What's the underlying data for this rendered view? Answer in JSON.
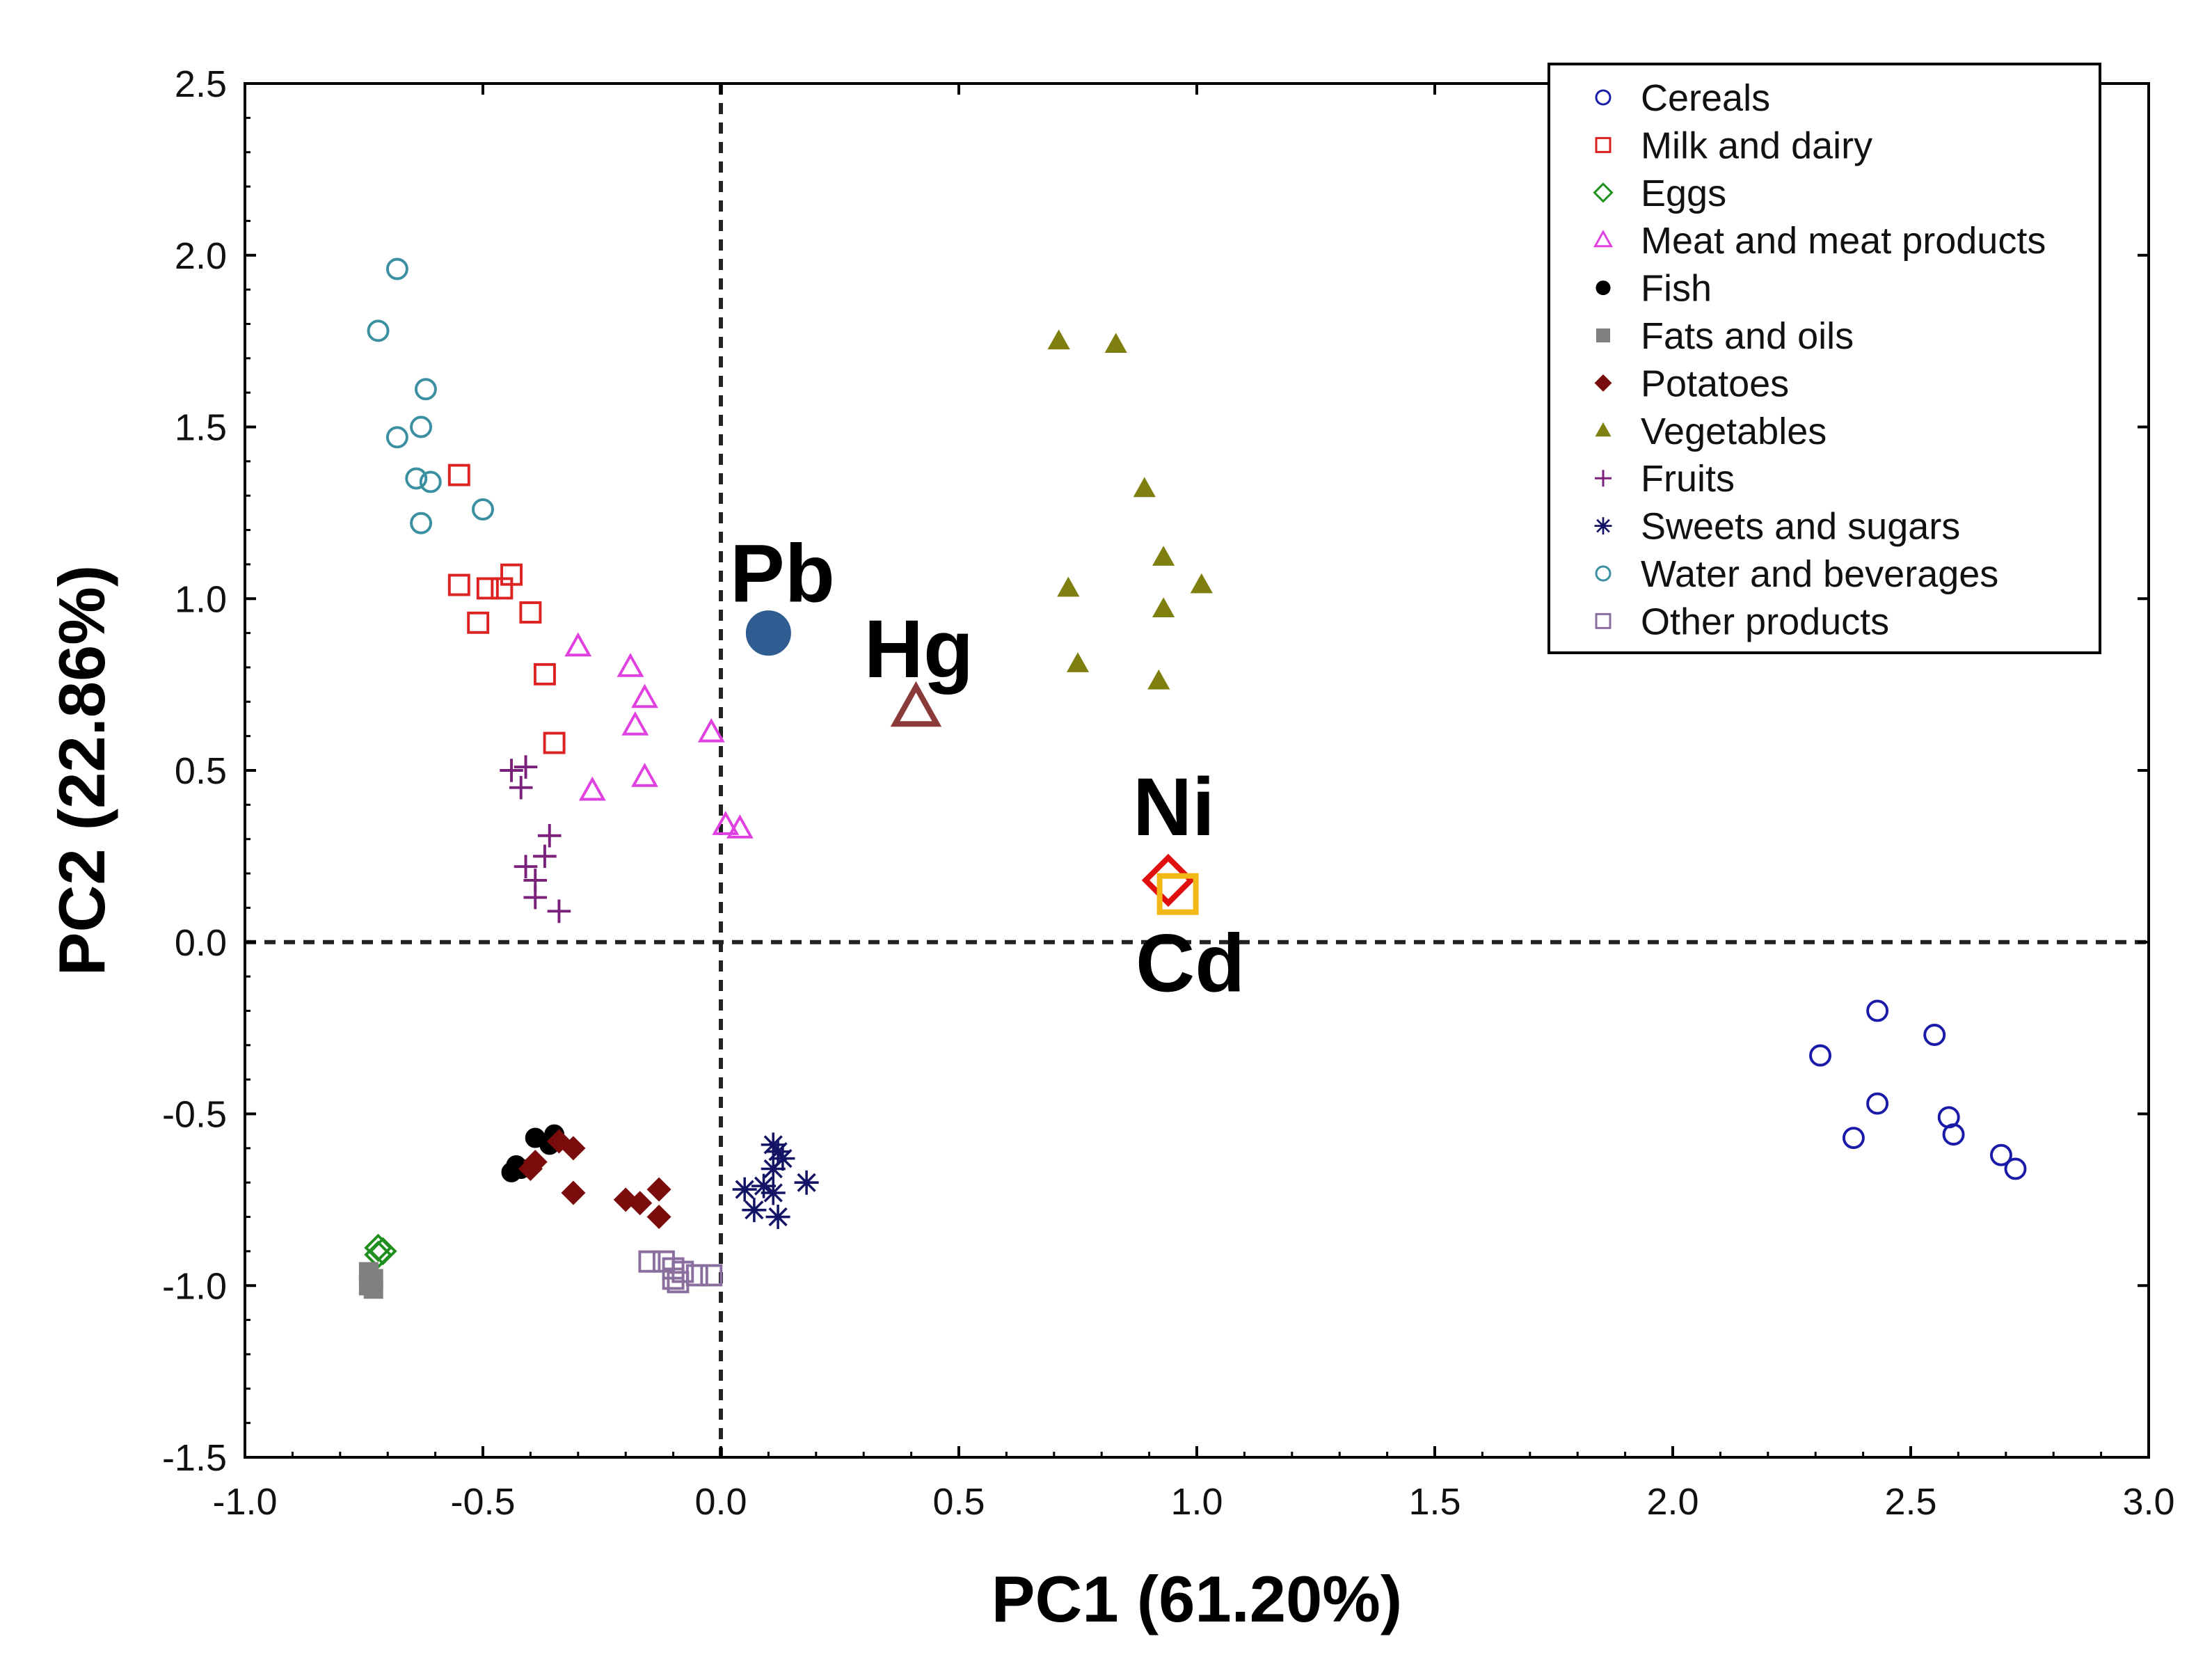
{
  "chart_data": {
    "type": "scatter",
    "xlabel": "PC1 (61.20%)",
    "ylabel": "PC2 (22.86%)",
    "xlim": [
      -1.0,
      3.0
    ],
    "ylim": [
      -1.5,
      2.5
    ],
    "xticks": [
      -1.0,
      -0.5,
      0.0,
      0.5,
      1.0,
      1.5,
      2.0,
      2.5,
      3.0
    ],
    "xtick_labels": [
      "-1.0",
      "-0.5",
      "0.0",
      "0.5",
      "1.0",
      "1.5",
      "2.0",
      "2.5",
      "3.0"
    ],
    "yticks": [
      -1.5,
      -1.0,
      -0.5,
      0.0,
      0.5,
      1.0,
      1.5,
      2.0,
      2.5
    ],
    "ytick_labels": [
      "-1.5",
      "-1.0",
      "-0.5",
      "0.0",
      "0.5",
      "1.0",
      "1.5",
      "2.0",
      "2.5"
    ],
    "reference_lines": {
      "x": 0.0,
      "y": 0.0,
      "style": "dashed"
    },
    "legend_position": "top-right",
    "series": [
      {
        "name": "Cereals",
        "marker": "circle-open",
        "color": "#1a1aa8",
        "points": [
          [
            2.43,
            -0.2
          ],
          [
            2.55,
            -0.27
          ],
          [
            2.31,
            -0.33
          ],
          [
            2.43,
            -0.47
          ],
          [
            2.58,
            -0.51
          ],
          [
            2.59,
            -0.56
          ],
          [
            2.38,
            -0.57
          ],
          [
            2.69,
            -0.62
          ],
          [
            2.72,
            -0.66
          ]
        ]
      },
      {
        "name": "Milk and dairy",
        "marker": "square-open",
        "color": "#dd2222",
        "points": [
          [
            -0.55,
            1.36
          ],
          [
            -0.44,
            1.07
          ],
          [
            -0.55,
            1.04
          ],
          [
            -0.46,
            1.03
          ],
          [
            -0.49,
            1.03
          ],
          [
            -0.4,
            0.96
          ],
          [
            -0.51,
            0.93
          ],
          [
            -0.37,
            0.78
          ],
          [
            -0.35,
            0.58
          ]
        ]
      },
      {
        "name": "Eggs",
        "marker": "diamond-open",
        "color": "#1f8f1f",
        "points": [
          [
            -0.72,
            -0.89
          ],
          [
            -0.71,
            -0.9
          ],
          [
            -0.72,
            -0.91
          ]
        ]
      },
      {
        "name": "Meat and meat products",
        "marker": "triangle-open",
        "color": "#e040e0",
        "points": [
          [
            -0.3,
            0.86
          ],
          [
            -0.19,
            0.8
          ],
          [
            -0.16,
            0.71
          ],
          [
            -0.18,
            0.63
          ],
          [
            -0.02,
            0.61
          ],
          [
            -0.16,
            0.48
          ],
          [
            -0.27,
            0.44
          ],
          [
            0.01,
            0.34
          ],
          [
            0.04,
            0.33
          ]
        ]
      },
      {
        "name": "Fish",
        "marker": "circle-filled",
        "color": "#000000",
        "points": [
          [
            -0.39,
            -0.57
          ],
          [
            -0.35,
            -0.56
          ],
          [
            -0.36,
            -0.59
          ],
          [
            -0.43,
            -0.65
          ],
          [
            -0.44,
            -0.67
          ],
          [
            -0.42,
            -0.66
          ]
        ]
      },
      {
        "name": "Fats and oils",
        "marker": "square-filled",
        "color": "#808080",
        "points": [
          [
            -0.74,
            -0.96
          ],
          [
            -0.73,
            -0.98
          ],
          [
            -0.74,
            -1.0
          ],
          [
            -0.73,
            -1.01
          ]
        ]
      },
      {
        "name": "Potatoes",
        "marker": "diamond-filled",
        "color": "#7a0c0c",
        "points": [
          [
            -0.34,
            -0.58
          ],
          [
            -0.31,
            -0.6
          ],
          [
            -0.39,
            -0.64
          ],
          [
            -0.4,
            -0.66
          ],
          [
            -0.31,
            -0.73
          ],
          [
            -0.13,
            -0.72
          ],
          [
            -0.2,
            -0.75
          ],
          [
            -0.17,
            -0.76
          ],
          [
            -0.13,
            -0.8
          ]
        ]
      },
      {
        "name": "Vegetables",
        "marker": "triangle-filled",
        "color": "#7f7f10",
        "points": [
          [
            0.71,
            1.75
          ],
          [
            0.83,
            1.74
          ],
          [
            0.89,
            1.32
          ],
          [
            0.93,
            1.12
          ],
          [
            1.01,
            1.04
          ],
          [
            0.73,
            1.03
          ],
          [
            0.93,
            0.97
          ],
          [
            0.75,
            0.81
          ],
          [
            0.92,
            0.76
          ]
        ]
      },
      {
        "name": "Fruits",
        "marker": "plus",
        "color": "#7a1f7a",
        "points": [
          [
            -0.44,
            0.5
          ],
          [
            -0.41,
            0.51
          ],
          [
            -0.42,
            0.45
          ],
          [
            -0.36,
            0.31
          ],
          [
            -0.37,
            0.25
          ],
          [
            -0.41,
            0.22
          ],
          [
            -0.39,
            0.18
          ],
          [
            -0.39,
            0.13
          ],
          [
            -0.34,
            0.09
          ]
        ]
      },
      {
        "name": "Sweets and sugars",
        "marker": "asterisk",
        "color": "#141466",
        "points": [
          [
            0.11,
            -0.59
          ],
          [
            0.12,
            -0.61
          ],
          [
            0.13,
            -0.63
          ],
          [
            0.11,
            -0.66
          ],
          [
            0.05,
            -0.72
          ],
          [
            0.09,
            -0.71
          ],
          [
            0.18,
            -0.7
          ],
          [
            0.11,
            -0.73
          ],
          [
            0.07,
            -0.78
          ],
          [
            0.12,
            -0.8
          ]
        ]
      },
      {
        "name": "Water and beverages",
        "marker": "circle-open",
        "color": "#3a8fa0",
        "points": [
          [
            -0.68,
            1.96
          ],
          [
            -0.72,
            1.78
          ],
          [
            -0.62,
            1.61
          ],
          [
            -0.63,
            1.5
          ],
          [
            -0.68,
            1.47
          ],
          [
            -0.64,
            1.35
          ],
          [
            -0.61,
            1.34
          ],
          [
            -0.5,
            1.26
          ],
          [
            -0.63,
            1.22
          ]
        ]
      },
      {
        "name": "Other products",
        "marker": "square-open",
        "color": "#8a6f9e",
        "points": [
          [
            -0.15,
            -0.93
          ],
          [
            -0.12,
            -0.93
          ],
          [
            -0.1,
            -0.95
          ],
          [
            -0.08,
            -0.96
          ],
          [
            -0.05,
            -0.97
          ],
          [
            -0.02,
            -0.97
          ],
          [
            -0.1,
            -0.98
          ],
          [
            -0.09,
            -0.99
          ]
        ]
      }
    ],
    "loadings": [
      {
        "label": "Pb",
        "x": 0.1,
        "y": 0.9,
        "marker": "circle-filled",
        "color": "#2f5d91"
      },
      {
        "label": "Hg",
        "x": 0.41,
        "y": 0.68,
        "marker": "triangle-open",
        "color": "#8b3a3a"
      },
      {
        "label": "Ni",
        "x": 0.94,
        "y": 0.18,
        "marker": "diamond-open",
        "color": "#e01010"
      },
      {
        "label": "Cd",
        "x": 0.96,
        "y": 0.14,
        "marker": "square-open",
        "color": "#f2b817"
      }
    ]
  }
}
